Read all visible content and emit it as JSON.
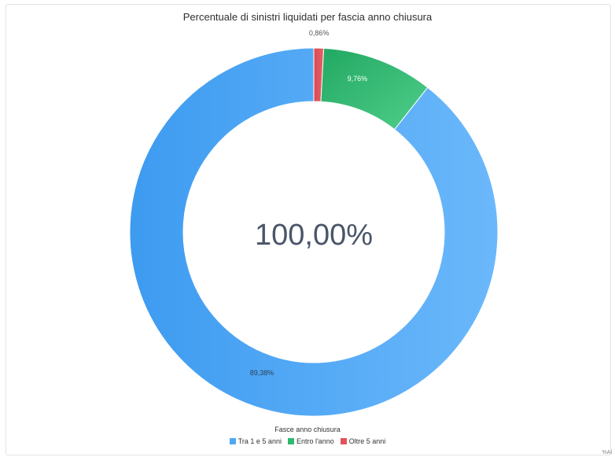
{
  "chart_data": {
    "type": "pie",
    "donut": true,
    "title": "Percentuale di sinistri liquidati per fascia anno chiusura",
    "center_label": "100,00%",
    "legend_title": "Fasce anno chiusura",
    "legend_position": "bottom-center",
    "slices": [
      {
        "name": "Oltre 5 anni",
        "value": 0.86,
        "label": "0,86%",
        "color": "#e0535a"
      },
      {
        "name": "Entro l'anno",
        "value": 9.76,
        "label": "9,76%",
        "color": "#2eb872"
      },
      {
        "name": "Tra 1 e 5 anni",
        "value": 89.38,
        "label": "89,38%",
        "color": "#4fa8f5"
      }
    ],
    "legend": [
      {
        "name": "Tra 1 e 5 anni",
        "color": "#4fa8f5"
      },
      {
        "name": "Entro l'anno",
        "color": "#2eb872"
      },
      {
        "name": "Oltre 5 anni",
        "color": "#e0535a"
      }
    ]
  },
  "corner_tag": "%Al"
}
